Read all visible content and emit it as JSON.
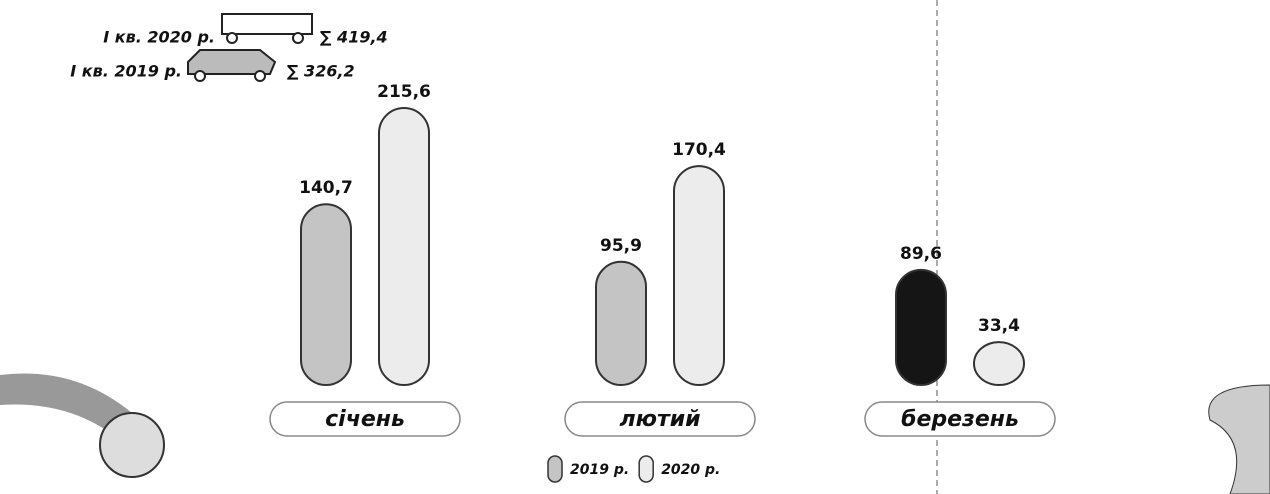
{
  "chart_data": {
    "type": "bar",
    "categories": [
      "січень",
      "лютий",
      "березень"
    ],
    "series": [
      {
        "name": "2019 р.",
        "color": "#c4c4c4",
        "colors": [
          "#c4c4c4",
          "#c4c4c4",
          "#151515"
        ],
        "values": [
          140.7,
          95.9,
          89.6
        ],
        "value_labels": [
          "140,7",
          "95,9",
          "89,6"
        ]
      },
      {
        "name": "2020 р.",
        "color": "#ececec",
        "values": [
          215.6,
          170.4,
          33.4
        ],
        "value_labels": [
          "215,6",
          "170,4",
          "33,4"
        ]
      }
    ],
    "totals": [
      {
        "period": "І кв. 2020 р.",
        "total": "∑ 419,4"
      },
      {
        "period": "І кв. 2019 р.",
        "total": "∑ 326,2"
      }
    ]
  }
}
